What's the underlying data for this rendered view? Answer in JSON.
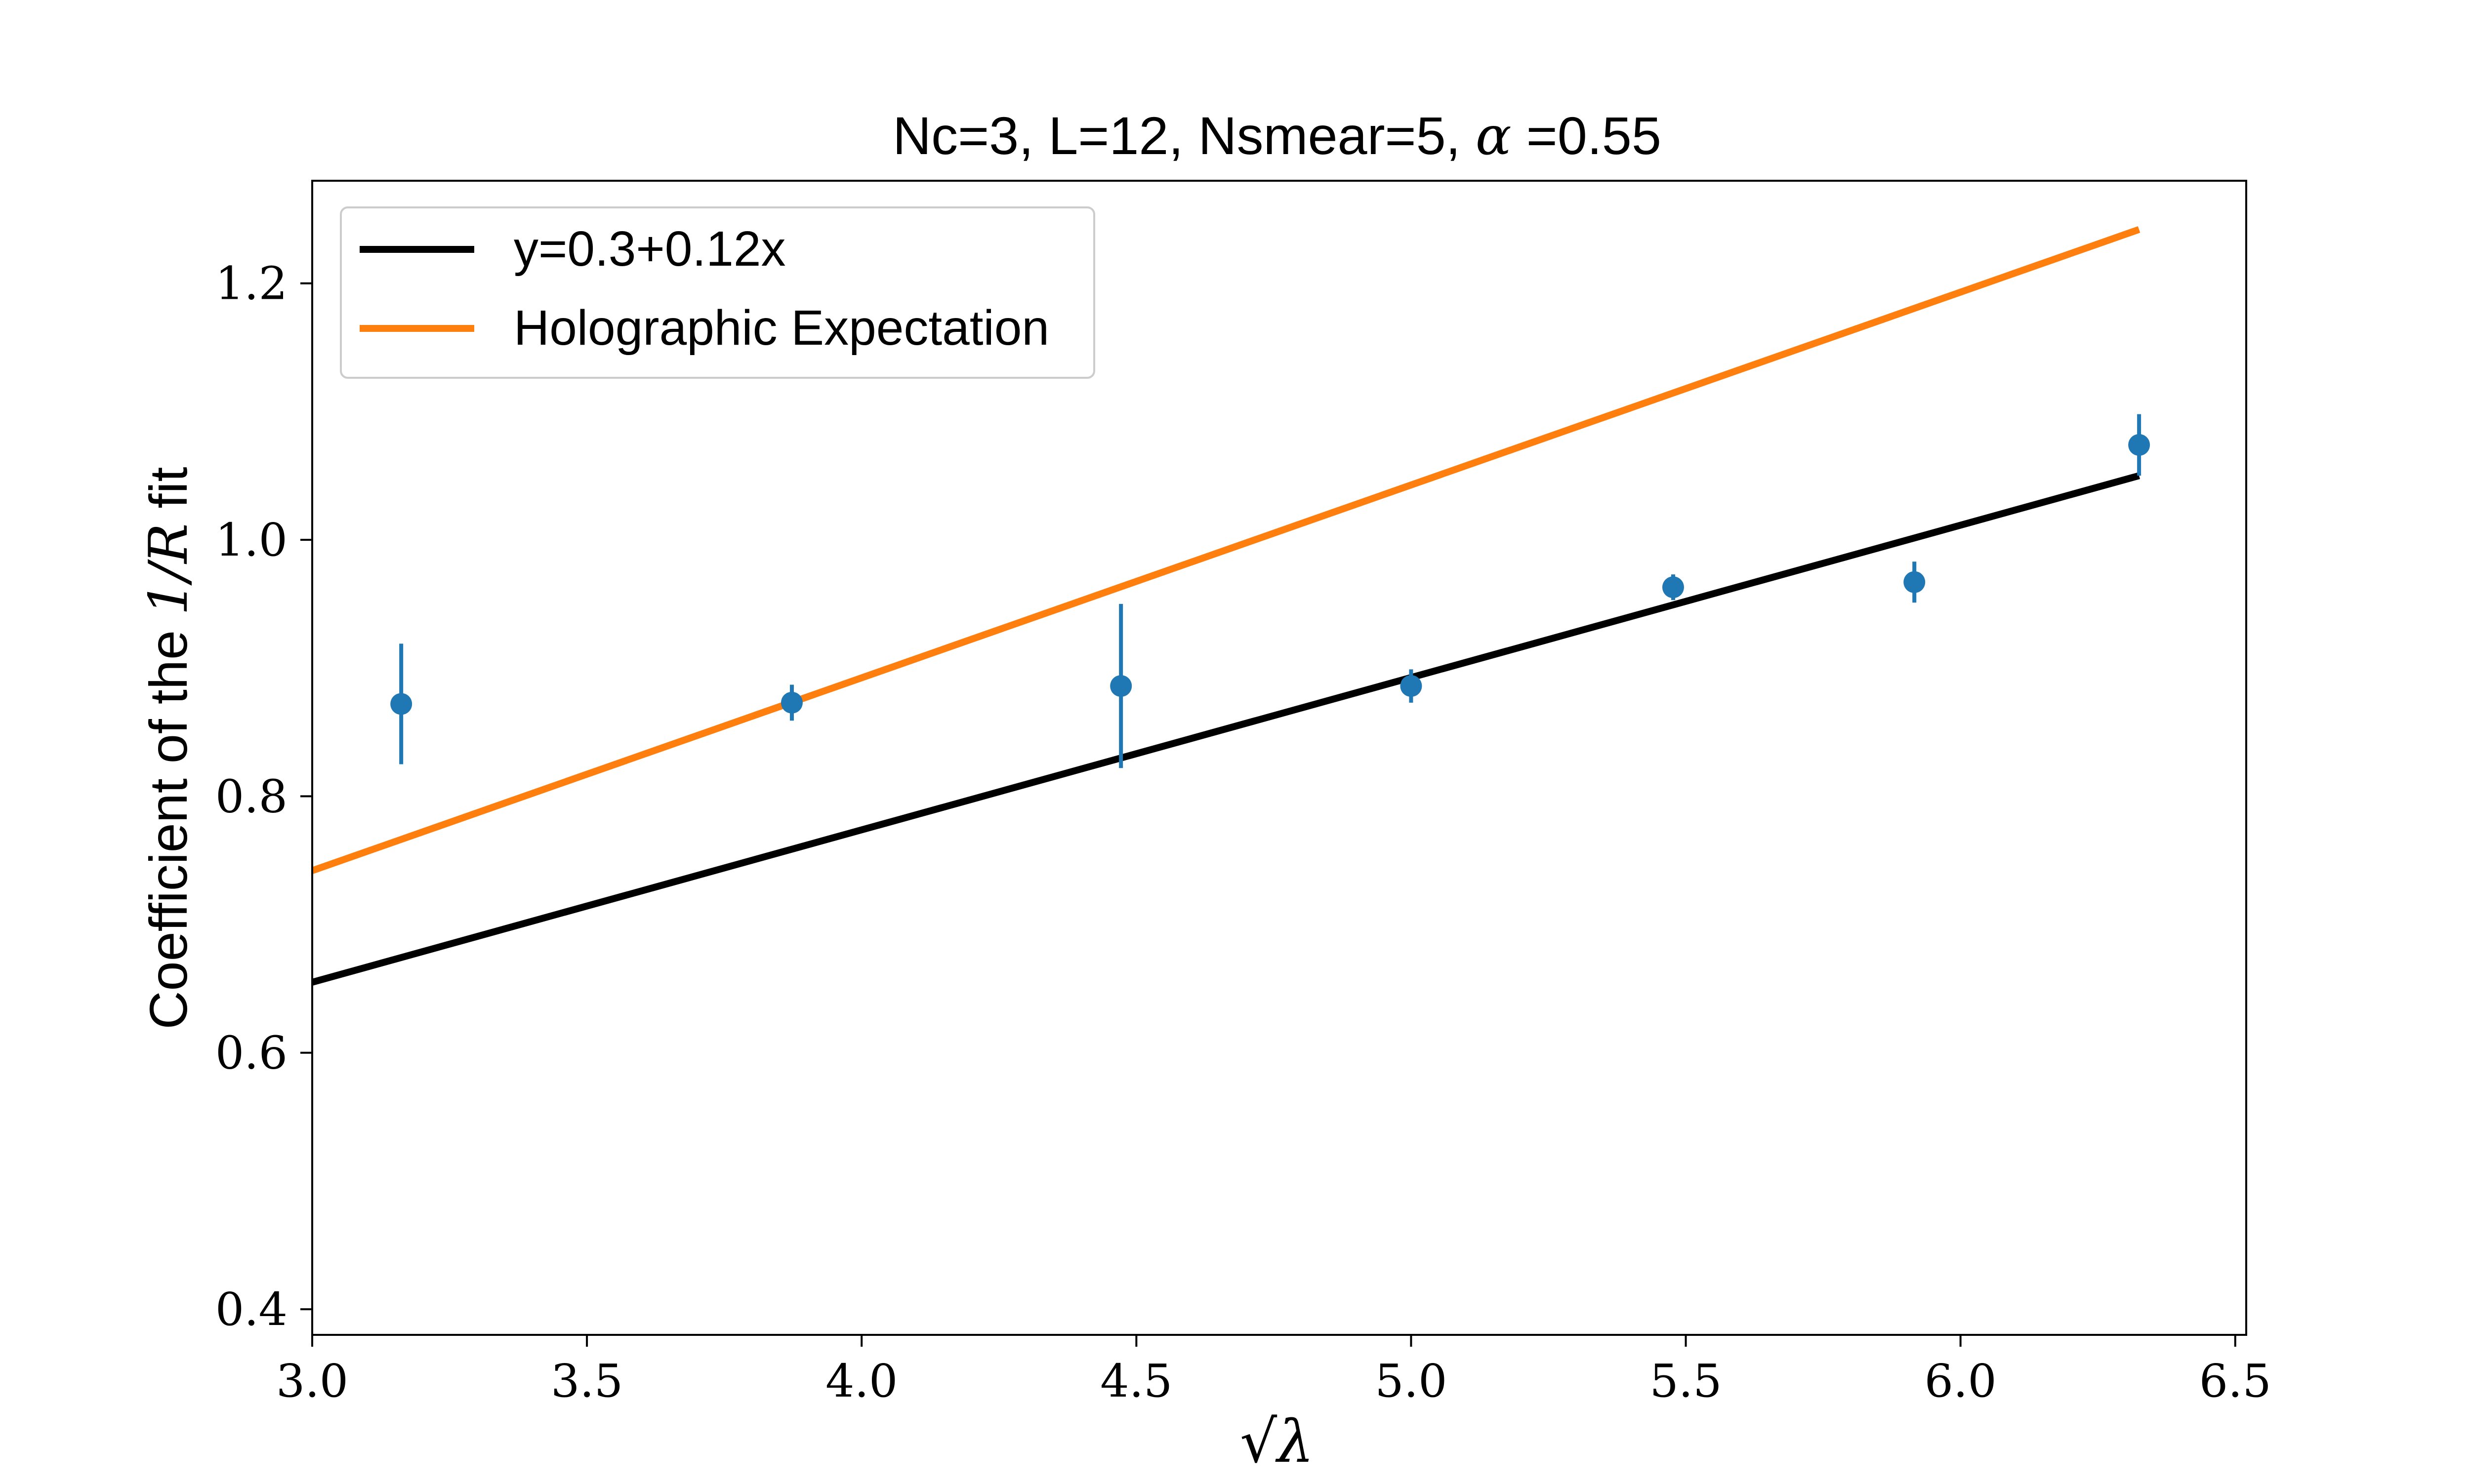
{
  "chart_data": {
    "type": "scatter",
    "title": {
      "prefix": "Nc=3, L=12, Nsmear=5, ",
      "symbol": "α",
      "suffix": " =0.55"
    },
    "xlabel": "√λ",
    "ylabel": {
      "prefix": "Coefficient of the ",
      "math": "1/R",
      "suffix": " fit"
    },
    "xlim": [
      3.0,
      6.52
    ],
    "ylim": [
      0.38,
      1.28
    ],
    "xticks": [
      3.0,
      3.5,
      4.0,
      4.5,
      5.0,
      5.5,
      6.0,
      6.5
    ],
    "xtick_labels": [
      "3.0",
      "3.5",
      "4.0",
      "4.5",
      "5.0",
      "5.5",
      "6.0",
      "6.5"
    ],
    "yticks": [
      0.4,
      0.6,
      0.8,
      1.0,
      1.2
    ],
    "ytick_labels": [
      "0.4",
      "0.6",
      "0.8",
      "1.0",
      "1.2"
    ],
    "grid": false,
    "legend_position": "upper-left",
    "series": [
      {
        "kind": "line",
        "name": "y=0.3+0.12x",
        "color": "#000000",
        "x": [
          3.0,
          6.325
        ],
        "y": [
          0.655,
          1.05
        ]
      },
      {
        "kind": "line",
        "name": "Holographic Expectation",
        "color": "#ff7f0e",
        "x": [
          3.0,
          6.325
        ],
        "y": [
          0.742,
          1.242
        ]
      },
      {
        "kind": "errorbar",
        "color": "#1f77b4",
        "points": [
          {
            "x": 3.162,
            "y": 0.872,
            "err": 0.047
          },
          {
            "x": 3.873,
            "y": 0.873,
            "err": 0.014
          },
          {
            "x": 4.472,
            "y": 0.886,
            "err": 0.064
          },
          {
            "x": 5.0,
            "y": 0.886,
            "err": 0.013
          },
          {
            "x": 5.477,
            "y": 0.963,
            "err": 0.01
          },
          {
            "x": 5.916,
            "y": 0.967,
            "err": 0.016
          },
          {
            "x": 6.325,
            "y": 1.074,
            "err": 0.024
          }
        ]
      }
    ]
  }
}
